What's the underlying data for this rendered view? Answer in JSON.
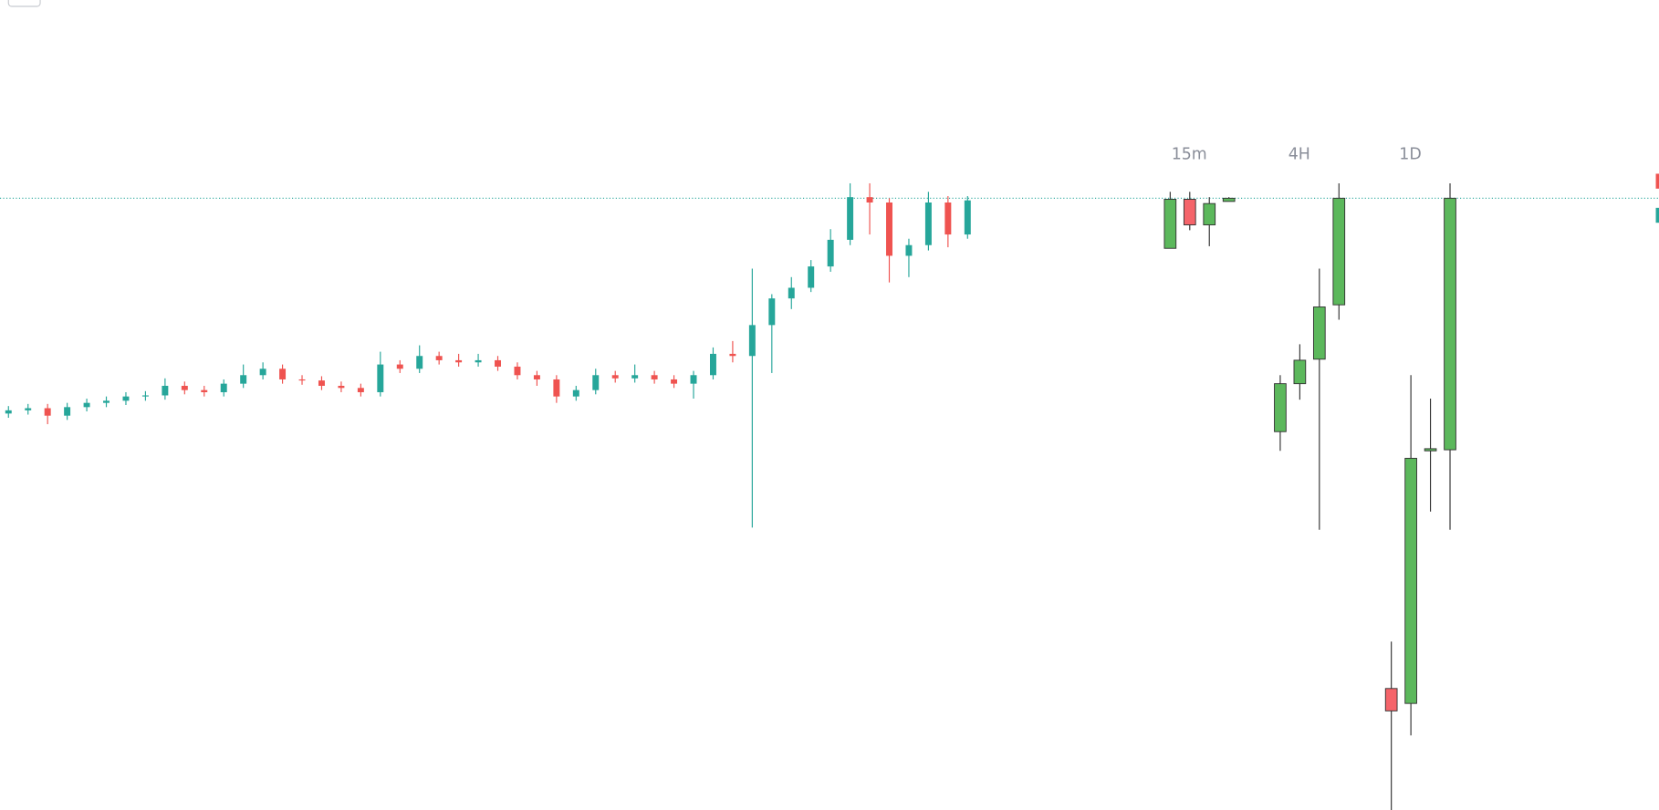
{
  "chart_data": {
    "type": "candlestick",
    "ylim": [
      0,
      760
    ],
    "up_color": "#26a69a",
    "down_color": "#ef5350",
    "price_line": 574,
    "price_line_color": "#26a69a",
    "candles": [
      {
        "o": 372,
        "h": 379,
        "l": 368,
        "c": 375
      },
      {
        "o": 375,
        "h": 381,
        "l": 371,
        "c": 377
      },
      {
        "o": 377,
        "h": 381,
        "l": 362,
        "c": 370
      },
      {
        "o": 370,
        "h": 382,
        "l": 366,
        "c": 378
      },
      {
        "o": 378,
        "h": 386,
        "l": 374,
        "c": 382
      },
      {
        "o": 382,
        "h": 388,
        "l": 378,
        "c": 384
      },
      {
        "o": 384,
        "h": 392,
        "l": 380,
        "c": 388
      },
      {
        "o": 388,
        "h": 393,
        "l": 384,
        "c": 389
      },
      {
        "o": 389,
        "h": 405,
        "l": 385,
        "c": 398
      },
      {
        "o": 398,
        "h": 402,
        "l": 390,
        "c": 394
      },
      {
        "o": 394,
        "h": 398,
        "l": 388,
        "c": 392
      },
      {
        "o": 392,
        "h": 404,
        "l": 388,
        "c": 400
      },
      {
        "o": 400,
        "h": 418,
        "l": 396,
        "c": 408
      },
      {
        "o": 408,
        "h": 420,
        "l": 404,
        "c": 414
      },
      {
        "o": 414,
        "h": 418,
        "l": 400,
        "c": 404
      },
      {
        "o": 404,
        "h": 408,
        "l": 399,
        "c": 403
      },
      {
        "o": 403,
        "h": 407,
        "l": 394,
        "c": 398
      },
      {
        "o": 398,
        "h": 402,
        "l": 392,
        "c": 396
      },
      {
        "o": 396,
        "h": 400,
        "l": 388,
        "c": 392
      },
      {
        "o": 392,
        "h": 430,
        "l": 388,
        "c": 418
      },
      {
        "o": 418,
        "h": 422,
        "l": 410,
        "c": 414
      },
      {
        "o": 414,
        "h": 436,
        "l": 410,
        "c": 426
      },
      {
        "o": 426,
        "h": 430,
        "l": 418,
        "c": 422
      },
      {
        "o": 422,
        "h": 428,
        "l": 416,
        "c": 420
      },
      {
        "o": 420,
        "h": 428,
        "l": 416,
        "c": 422
      },
      {
        "o": 422,
        "h": 426,
        "l": 412,
        "c": 416
      },
      {
        "o": 416,
        "h": 420,
        "l": 404,
        "c": 408
      },
      {
        "o": 408,
        "h": 412,
        "l": 398,
        "c": 404
      },
      {
        "o": 404,
        "h": 408,
        "l": 382,
        "c": 388
      },
      {
        "o": 388,
        "h": 398,
        "l": 384,
        "c": 394
      },
      {
        "o": 394,
        "h": 414,
        "l": 390,
        "c": 408
      },
      {
        "o": 408,
        "h": 412,
        "l": 401,
        "c": 405
      },
      {
        "o": 405,
        "h": 418,
        "l": 401,
        "c": 408
      },
      {
        "o": 408,
        "h": 412,
        "l": 400,
        "c": 404
      },
      {
        "o": 404,
        "h": 408,
        "l": 396,
        "c": 400
      },
      {
        "o": 400,
        "h": 412,
        "l": 386,
        "c": 408
      },
      {
        "o": 408,
        "h": 434,
        "l": 404,
        "c": 428
      },
      {
        "o": 428,
        "h": 440,
        "l": 420,
        "c": 426
      },
      {
        "o": 426,
        "h": 508,
        "l": 265,
        "c": 455
      },
      {
        "o": 455,
        "h": 484,
        "l": 410,
        "c": 480
      },
      {
        "o": 480,
        "h": 500,
        "l": 470,
        "c": 490
      },
      {
        "o": 490,
        "h": 516,
        "l": 486,
        "c": 510
      },
      {
        "o": 510,
        "h": 545,
        "l": 505,
        "c": 535
      },
      {
        "o": 535,
        "h": 588,
        "l": 530,
        "c": 575
      },
      {
        "o": 575,
        "h": 588,
        "l": 540,
        "c": 570
      },
      {
        "o": 570,
        "h": 574,
        "l": 495,
        "c": 520
      },
      {
        "o": 520,
        "h": 536,
        "l": 500,
        "c": 530
      },
      {
        "o": 530,
        "h": 580,
        "l": 525,
        "c": 570
      },
      {
        "o": 570,
        "h": 576,
        "l": 528,
        "c": 540
      },
      {
        "o": 540,
        "h": 576,
        "l": 536,
        "c": 572
      }
    ],
    "panel_up_color": "#5cb85c",
    "panel_down_color": "#f5646a",
    "panels": [
      {
        "label": "15m",
        "candles": [
          {
            "o": 527,
            "h": 580,
            "l": 527,
            "c": 573
          },
          {
            "o": 573,
            "h": 580,
            "l": 544,
            "c": 549
          },
          {
            "o": 549,
            "h": 575,
            "l": 529,
            "c": 569
          },
          {
            "o": 571,
            "h": 575,
            "l": 571,
            "c": 574
          }
        ]
      },
      {
        "label": "4H",
        "candles": [
          {
            "o": 355,
            "h": 408,
            "l": 337,
            "c": 400
          },
          {
            "o": 400,
            "h": 437,
            "l": 385,
            "c": 422
          },
          {
            "o": 423,
            "h": 508,
            "l": 263,
            "c": 472
          },
          {
            "o": 474,
            "h": 588,
            "l": 460,
            "c": 574
          }
        ]
      },
      {
        "label": "1D",
        "candles": [
          {
            "o": 114,
            "h": 158,
            "l": 0,
            "c": 93
          },
          {
            "o": 100,
            "h": 408,
            "l": 70,
            "c": 330
          },
          {
            "o": 337,
            "h": 386,
            "l": 280,
            "c": 339
          },
          {
            "o": 338,
            "h": 588,
            "l": 263,
            "c": 574
          }
        ]
      }
    ]
  }
}
